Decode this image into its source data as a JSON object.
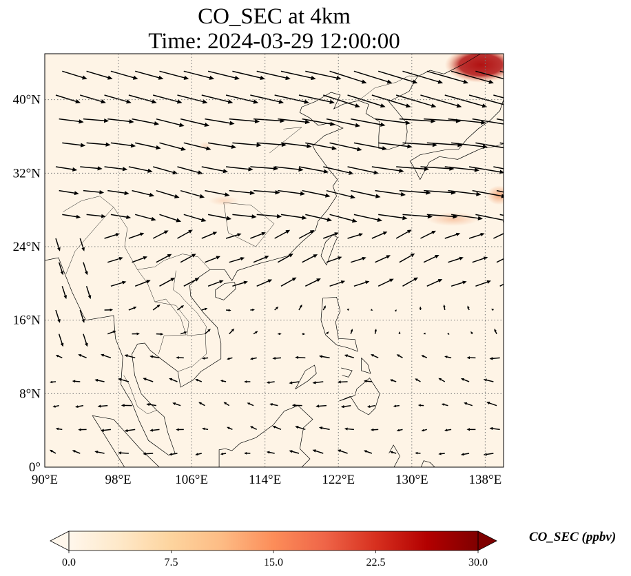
{
  "title": {
    "line1": "CO_SEC at 4km",
    "line2": "Time: 2024-03-29 12:00:00"
  },
  "map": {
    "lon_range": [
      90,
      140
    ],
    "lat_range": [
      0,
      45
    ],
    "lon_ticks": [
      "90°E",
      "98°E",
      "106°E",
      "114°E",
      "122°E",
      "130°E",
      "138°E"
    ],
    "lon_tick_values": [
      90,
      98,
      106,
      114,
      122,
      130,
      138
    ],
    "lat_ticks": [
      "0°",
      "8°N",
      "16°N",
      "24°N",
      "32°N",
      "40°N"
    ],
    "lat_tick_values": [
      0,
      8,
      16,
      24,
      32,
      40
    ],
    "gridlines": true,
    "background_color": "#fef4e6",
    "plume_color_high": "#b11212",
    "plume_color_mid": "#f3a070",
    "wind_vectors": "prevailing westerlies north of ~20°N, easterly flow over the tropics"
  },
  "colorbar": {
    "label": "CO_SEC (ppbv)",
    "ticks": [
      "0.0",
      "7.5",
      "15.0",
      "22.5",
      "30.0"
    ],
    "range": [
      0,
      30
    ],
    "colormap": [
      "#fff7ec",
      "#fee8c8",
      "#fdd49e",
      "#fdbb84",
      "#fc8d59",
      "#ef6548",
      "#d7301f",
      "#b30000",
      "#7f0000"
    ],
    "extend": "both"
  }
}
